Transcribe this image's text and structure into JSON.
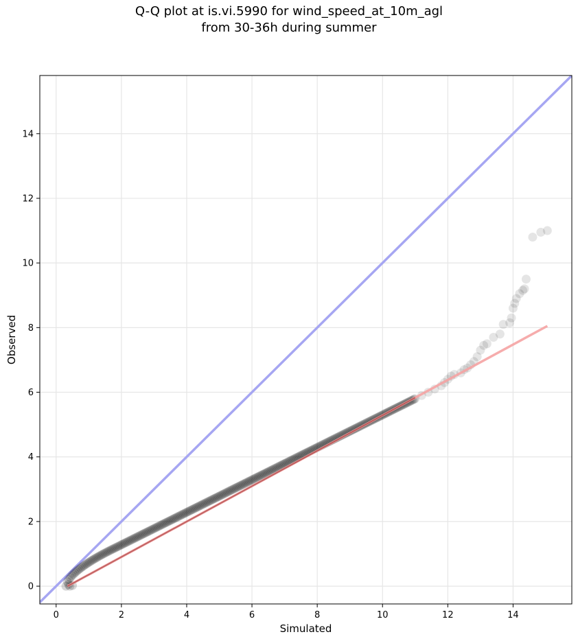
{
  "chart_data": {
    "type": "scatter",
    "title_line1": "Q-Q plot at is.vi.5990 for wind_speed_at_10m_agl",
    "title_line2": "from 30-36h during summer",
    "xlabel": "Simulated",
    "ylabel": "Observed",
    "xlim": [
      -0.5,
      15.8
    ],
    "ylim": [
      -0.55,
      15.8
    ],
    "xticks": [
      0,
      2,
      4,
      6,
      8,
      10,
      12,
      14
    ],
    "yticks": [
      0,
      2,
      4,
      6,
      8,
      10,
      12,
      14
    ],
    "xtick_labels": [
      "0",
      "2",
      "4",
      "6",
      "8",
      "10",
      "12",
      "14"
    ],
    "ytick_labels": [
      "0",
      "2",
      "4",
      "6",
      "8",
      "10",
      "12",
      "14"
    ],
    "grid": true,
    "identity_line": {
      "color": "#a6a6f2",
      "from": [
        -0.5,
        -0.5
      ],
      "to": [
        15.8,
        15.8
      ]
    },
    "fit_line": {
      "color": "#f5a3a3",
      "from": [
        0.35,
        0.0
      ],
      "to": [
        15.05,
        8.05
      ]
    },
    "points_color": "#000000",
    "tail_points": [
      [
        11.0,
        5.8
      ],
      [
        11.2,
        5.9
      ],
      [
        11.4,
        6.0
      ],
      [
        11.6,
        6.1
      ],
      [
        11.8,
        6.2
      ],
      [
        11.9,
        6.3
      ],
      [
        12.0,
        6.4
      ],
      [
        12.1,
        6.5
      ],
      [
        12.2,
        6.55
      ],
      [
        12.4,
        6.6
      ],
      [
        12.5,
        6.7
      ],
      [
        12.6,
        6.75
      ],
      [
        12.7,
        6.85
      ],
      [
        12.8,
        6.95
      ],
      [
        12.9,
        7.1
      ],
      [
        13.0,
        7.3
      ],
      [
        13.1,
        7.45
      ],
      [
        13.2,
        7.5
      ],
      [
        13.4,
        7.7
      ],
      [
        13.6,
        7.8
      ],
      [
        13.7,
        8.1
      ],
      [
        13.9,
        8.15
      ],
      [
        13.95,
        8.3
      ],
      [
        14.0,
        8.6
      ],
      [
        14.05,
        8.75
      ],
      [
        14.1,
        8.9
      ],
      [
        14.2,
        9.05
      ],
      [
        14.3,
        9.15
      ],
      [
        14.35,
        9.2
      ],
      [
        14.4,
        9.5
      ],
      [
        14.6,
        10.8
      ],
      [
        14.85,
        10.95
      ],
      [
        15.05,
        11.0
      ]
    ],
    "series_range": {
      "x_min": 0.3,
      "x_max": 15.05,
      "y_min": 0.0,
      "y_max": 11.0
    }
  }
}
